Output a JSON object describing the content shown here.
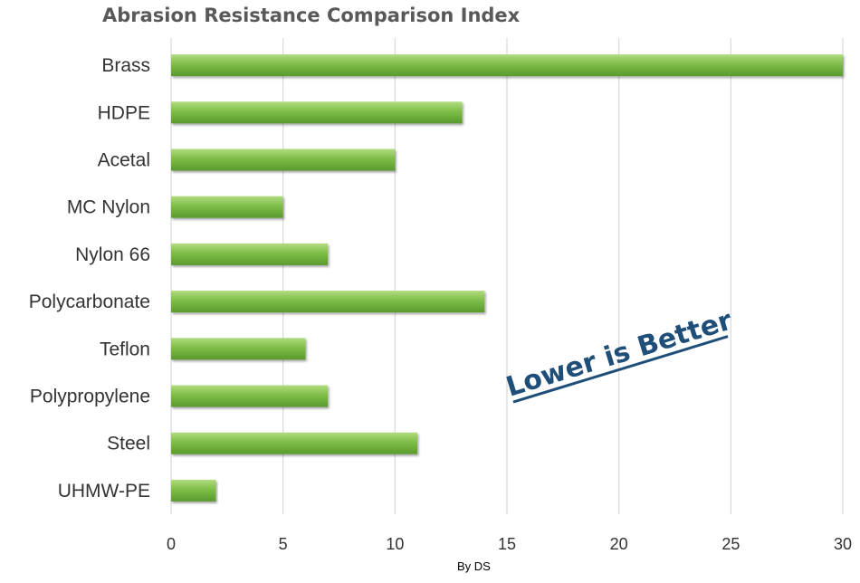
{
  "chart_data": {
    "type": "bar",
    "orientation": "horizontal",
    "title": "Abrasion Resistance Comparison Index",
    "categories": [
      "Brass",
      "HDPE",
      "Acetal",
      "MC Nylon",
      "Nylon  66",
      "Polycarbonate",
      "Teflon",
      "Polypropylene",
      "Steel",
      "UHMW-PE"
    ],
    "values": [
      30,
      13,
      10,
      5,
      7,
      14,
      6,
      7,
      11,
      2
    ],
    "xlim": [
      0,
      30
    ],
    "xticks": [
      0,
      5,
      10,
      15,
      20,
      25,
      30
    ],
    "grid": "vertical",
    "legend": "none",
    "annotation": "Lower is Better",
    "credit": "By DS",
    "colors": {
      "bar": "#6aa93a",
      "bar_light": "#a6d56f",
      "annotation": "#1f4e79",
      "grid": "#d9d9d9"
    }
  }
}
